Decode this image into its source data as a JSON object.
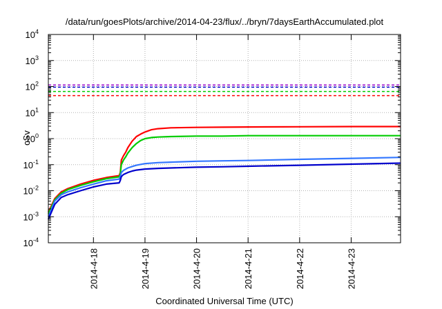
{
  "chart_data": {
    "type": "line",
    "title": "/data/run/goesPlots/archive/2014-04-23/flux/../bryn/7daysEarthAccumulated.plot",
    "xlabel": "Coordinated Universal Time (UTC)",
    "ylabel": "cSv",
    "xlim": [
      "2014-04-17 03:00",
      "2014-04-23 23:00"
    ],
    "ylim": [
      0.0001,
      10000
    ],
    "yscale": "log",
    "grid": true,
    "x_ticks": [
      "2014-4-18",
      "2014-4-19",
      "2014-4-20",
      "2014-4-21",
      "2014-4-22",
      "2014-4-23"
    ],
    "y_ticks": [
      {
        "base": "10",
        "exp": "-4"
      },
      {
        "base": "10",
        "exp": "-3"
      },
      {
        "base": "10",
        "exp": "-2"
      },
      {
        "base": "10",
        "exp": "-1"
      },
      {
        "base": "10",
        "exp": "0"
      },
      {
        "base": "10",
        "exp": "1"
      },
      {
        "base": "10",
        "exp": "2"
      },
      {
        "base": "10",
        "exp": "3"
      },
      {
        "base": "10",
        "exp": "4"
      }
    ],
    "thresholds": [
      {
        "color": "#ff0000",
        "value": 45
      },
      {
        "color": "#00cc00",
        "value": 65
      },
      {
        "color": "#0000cc",
        "value": 95
      },
      {
        "color": "#9900cc",
        "value": 115
      }
    ],
    "series": [
      {
        "color": "#ff0000",
        "x": [
          "2014-04-17 03:00",
          "2014-04-17 06:00",
          "2014-04-17 09:00",
          "2014-04-17 12:00",
          "2014-04-17 18:00",
          "2014-04-18 00:00",
          "2014-04-18 06:00",
          "2014-04-18 12:00",
          "2014-04-18 12:30",
          "2014-04-18 13:00",
          "2014-04-18 14:00",
          "2014-04-18 15:00",
          "2014-04-18 16:00",
          "2014-04-18 18:00",
          "2014-04-18 20:00",
          "2014-04-18 22:00",
          "2014-04-19 00:00",
          "2014-04-19 03:00",
          "2014-04-19 06:00",
          "2014-04-19 12:00",
          "2014-04-20 00:00",
          "2014-04-20 12:00",
          "2014-04-21 00:00",
          "2014-04-22 00:00",
          "2014-04-23 00:00",
          "2014-04-23 23:00"
        ],
        "y": [
          0.0015,
          0.005,
          0.009,
          0.012,
          0.018,
          0.025,
          0.032,
          0.038,
          0.05,
          0.15,
          0.22,
          0.3,
          0.45,
          0.8,
          1.2,
          1.5,
          1.8,
          2.2,
          2.4,
          2.6,
          2.7,
          2.75,
          2.8,
          2.85,
          2.9,
          2.9
        ]
      },
      {
        "color": "#00cc00",
        "x": [
          "2014-04-17 03:00",
          "2014-04-17 06:00",
          "2014-04-17 09:00",
          "2014-04-17 12:00",
          "2014-04-17 18:00",
          "2014-04-18 00:00",
          "2014-04-18 06:00",
          "2014-04-18 12:00",
          "2014-04-18 12:30",
          "2014-04-18 13:00",
          "2014-04-18 14:00",
          "2014-04-18 15:00",
          "2014-04-18 16:00",
          "2014-04-18 18:00",
          "2014-04-18 20:00",
          "2014-04-18 22:00",
          "2014-04-19 00:00",
          "2014-04-19 03:00",
          "2014-04-19 06:00",
          "2014-04-19 12:00",
          "2014-04-20 00:00",
          "2014-04-20 12:00",
          "2014-04-21 00:00",
          "2014-04-22 00:00",
          "2014-04-23 00:00",
          "2014-04-23 23:00"
        ],
        "y": [
          0.0013,
          0.0045,
          0.008,
          0.011,
          0.016,
          0.022,
          0.029,
          0.034,
          0.045,
          0.1,
          0.15,
          0.2,
          0.28,
          0.45,
          0.65,
          0.85,
          1.0,
          1.1,
          1.15,
          1.2,
          1.25,
          1.25,
          1.3,
          1.3,
          1.3,
          1.3
        ]
      },
      {
        "color": "#3377ff",
        "x": [
          "2014-04-17 03:00",
          "2014-04-17 06:00",
          "2014-04-17 09:00",
          "2014-04-17 12:00",
          "2014-04-17 18:00",
          "2014-04-18 00:00",
          "2014-04-18 06:00",
          "2014-04-18 12:00",
          "2014-04-18 12:30",
          "2014-04-18 13:00",
          "2014-04-18 14:00",
          "2014-04-18 16:00",
          "2014-04-18 18:00",
          "2014-04-18 20:00",
          "2014-04-19 00:00",
          "2014-04-19 06:00",
          "2014-04-19 12:00",
          "2014-04-20 00:00",
          "2014-04-20 12:00",
          "2014-04-21 00:00",
          "2014-04-22 00:00",
          "2014-04-23 00:00",
          "2014-04-23 23:00"
        ],
        "y": [
          0.001,
          0.004,
          0.007,
          0.009,
          0.013,
          0.018,
          0.024,
          0.028,
          0.035,
          0.05,
          0.06,
          0.075,
          0.085,
          0.095,
          0.11,
          0.12,
          0.125,
          0.135,
          0.14,
          0.145,
          0.16,
          0.175,
          0.19
        ]
      },
      {
        "color": "#0000cc",
        "x": [
          "2014-04-17 03:00",
          "2014-04-17 06:00",
          "2014-04-17 09:00",
          "2014-04-17 12:00",
          "2014-04-17 18:00",
          "2014-04-18 00:00",
          "2014-04-18 06:00",
          "2014-04-18 12:00",
          "2014-04-18 12:30",
          "2014-04-18 13:00",
          "2014-04-18 14:00",
          "2014-04-18 16:00",
          "2014-04-18 18:00",
          "2014-04-18 20:00",
          "2014-04-19 00:00",
          "2014-04-19 06:00",
          "2014-04-19 12:00",
          "2014-04-20 00:00",
          "2014-04-20 12:00",
          "2014-04-21 00:00",
          "2014-04-22 00:00",
          "2014-04-23 00:00",
          "2014-04-23 23:00"
        ],
        "y": [
          0.0008,
          0.003,
          0.0055,
          0.007,
          0.01,
          0.014,
          0.018,
          0.02,
          0.025,
          0.035,
          0.042,
          0.05,
          0.057,
          0.062,
          0.068,
          0.072,
          0.075,
          0.08,
          0.083,
          0.087,
          0.095,
          0.105,
          0.115
        ]
      }
    ]
  }
}
